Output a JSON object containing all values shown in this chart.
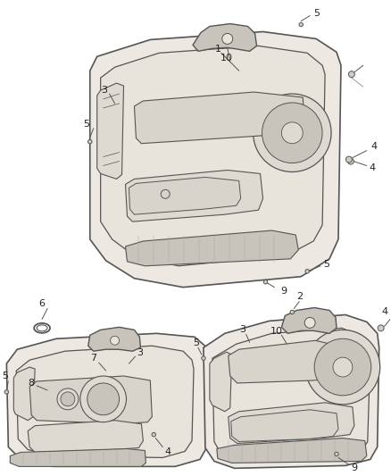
{
  "bg_color": "#ffffff",
  "line_color": "#555555",
  "panel_fill": "#ede9e2",
  "panel_inner_fill": "#e8e4dc",
  "handle_fill": "#dedad2",
  "ctrl_fill": "#d8d4cc",
  "grille_fill": "#c8c4bc",
  "annotation_color": "#222222",
  "leader_color": "#555555",
  "screw_color": "#888888"
}
